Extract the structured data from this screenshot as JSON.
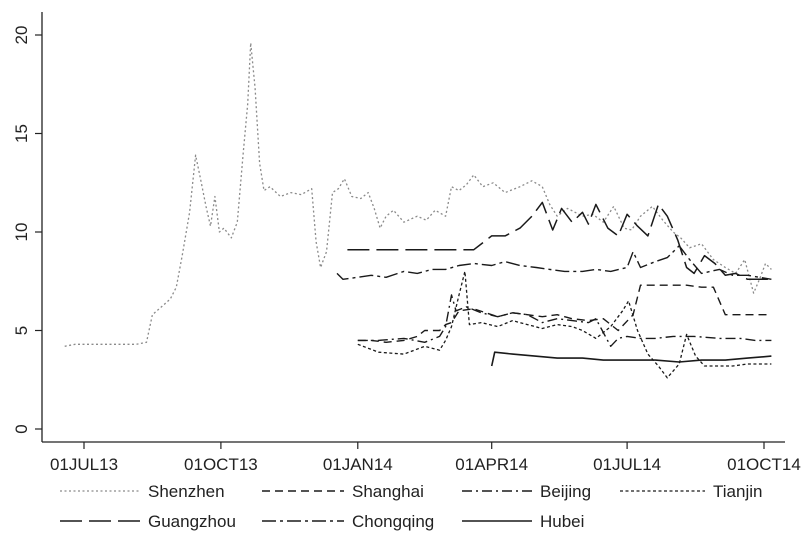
{
  "chart_data": {
    "type": "line",
    "title": "",
    "xlabel": "",
    "ylabel": "",
    "xlim": [
      "2013-06-10",
      "2014-10-12"
    ],
    "ylim": [
      0,
      20
    ],
    "grid": false,
    "legend_position": "bottom",
    "x_ticks": [
      {
        "date": "2013-07-01",
        "label": "01JUL13"
      },
      {
        "date": "2013-10-01",
        "label": "01OCT13"
      },
      {
        "date": "2014-01-01",
        "label": "01JAN14"
      },
      {
        "date": "2014-04-01",
        "label": "01APR14"
      },
      {
        "date": "2014-07-01",
        "label": "01JUL14"
      },
      {
        "date": "2014-10-01",
        "label": "01OCT14"
      }
    ],
    "y_ticks": [
      0,
      5,
      10,
      15,
      20
    ],
    "series": [
      {
        "name": "Shenzhen",
        "dash": "2,2.5",
        "color": "#8a8a8a",
        "width": 1.3,
        "points": [
          [
            "2013-06-18",
            4.2
          ],
          [
            "2013-06-25",
            4.3
          ],
          [
            "2013-07-15",
            4.3
          ],
          [
            "2013-08-05",
            4.3
          ],
          [
            "2013-08-12",
            4.4
          ],
          [
            "2013-08-16",
            5.8
          ],
          [
            "2013-08-22",
            6.2
          ],
          [
            "2013-08-28",
            6.6
          ],
          [
            "2013-09-01",
            7.2
          ],
          [
            "2013-09-05",
            8.8
          ],
          [
            "2013-09-10",
            11.0
          ],
          [
            "2013-09-14",
            13.9
          ],
          [
            "2013-09-17",
            12.8
          ],
          [
            "2013-09-21",
            11.3
          ],
          [
            "2013-09-24",
            10.3
          ],
          [
            "2013-09-27",
            11.8
          ],
          [
            "2013-09-30",
            10.0
          ],
          [
            "2013-10-03",
            10.2
          ],
          [
            "2013-10-08",
            9.7
          ],
          [
            "2013-10-12",
            10.5
          ],
          [
            "2013-10-16",
            14.0
          ],
          [
            "2013-10-19",
            16.5
          ],
          [
            "2013-10-21",
            19.6
          ],
          [
            "2013-10-24",
            17.3
          ],
          [
            "2013-10-27",
            13.5
          ],
          [
            "2013-10-30",
            12.1
          ],
          [
            "2013-11-03",
            12.3
          ],
          [
            "2013-11-10",
            11.8
          ],
          [
            "2013-11-17",
            12.0
          ],
          [
            "2013-11-24",
            11.9
          ],
          [
            "2013-12-01",
            12.2
          ],
          [
            "2013-12-04",
            9.5
          ],
          [
            "2013-12-07",
            8.2
          ],
          [
            "2013-12-11",
            9.0
          ],
          [
            "2013-12-15",
            12.0
          ],
          [
            "2013-12-19",
            12.2
          ],
          [
            "2013-12-23",
            12.7
          ],
          [
            "2013-12-28",
            11.8
          ],
          [
            "2014-01-03",
            11.7
          ],
          [
            "2014-01-08",
            12.0
          ],
          [
            "2014-01-12",
            11.2
          ],
          [
            "2014-01-16",
            10.2
          ],
          [
            "2014-01-20",
            10.8
          ],
          [
            "2014-01-25",
            11.1
          ],
          [
            "2014-02-01",
            10.5
          ],
          [
            "2014-02-10",
            10.8
          ],
          [
            "2014-02-16",
            10.6
          ],
          [
            "2014-02-22",
            11.1
          ],
          [
            "2014-03-01",
            10.8
          ],
          [
            "2014-03-05",
            12.3
          ],
          [
            "2014-03-10",
            12.1
          ],
          [
            "2014-03-15",
            12.4
          ],
          [
            "2014-03-20",
            12.9
          ],
          [
            "2014-03-26",
            12.3
          ],
          [
            "2014-04-02",
            12.5
          ],
          [
            "2014-04-10",
            12.0
          ],
          [
            "2014-04-20",
            12.3
          ],
          [
            "2014-04-28",
            12.6
          ],
          [
            "2014-05-05",
            12.3
          ],
          [
            "2014-05-10",
            11.4
          ],
          [
            "2014-05-15",
            10.8
          ],
          [
            "2014-05-22",
            11.2
          ],
          [
            "2014-06-01",
            10.8
          ],
          [
            "2014-06-08",
            10.9
          ],
          [
            "2014-06-15",
            10.5
          ],
          [
            "2014-06-22",
            11.3
          ],
          [
            "2014-06-29",
            10.2
          ],
          [
            "2014-07-04",
            10.1
          ],
          [
            "2014-07-10",
            10.8
          ],
          [
            "2014-07-18",
            11.3
          ],
          [
            "2014-07-25",
            10.6
          ],
          [
            "2014-08-01",
            10.0
          ],
          [
            "2014-08-06",
            9.7
          ],
          [
            "2014-08-12",
            9.2
          ],
          [
            "2014-08-20",
            9.4
          ],
          [
            "2014-08-28",
            8.6
          ],
          [
            "2014-09-05",
            8.2
          ],
          [
            "2014-09-12",
            7.9
          ],
          [
            "2014-09-18",
            8.6
          ],
          [
            "2014-09-24",
            6.9
          ],
          [
            "2014-09-28",
            7.6
          ],
          [
            "2014-10-02",
            8.4
          ],
          [
            "2014-10-06",
            8.1
          ]
        ]
      },
      {
        "name": "Shanghai",
        "dash": "8,5",
        "color": "#1a1a1a",
        "width": 1.4,
        "points": [
          [
            "2014-01-01",
            4.5
          ],
          [
            "2014-01-10",
            4.5
          ],
          [
            "2014-01-20",
            4.4
          ],
          [
            "2014-02-01",
            4.5
          ],
          [
            "2014-02-10",
            4.7
          ],
          [
            "2014-02-15",
            5.0
          ],
          [
            "2014-02-25",
            5.0
          ],
          [
            "2014-03-01",
            5.3
          ],
          [
            "2014-03-05",
            5.4
          ],
          [
            "2014-03-10",
            6.0
          ],
          [
            "2014-03-20",
            6.1
          ],
          [
            "2014-03-28",
            5.9
          ],
          [
            "2014-04-05",
            5.7
          ],
          [
            "2014-04-15",
            5.9
          ],
          [
            "2014-04-25",
            5.8
          ],
          [
            "2014-05-05",
            5.7
          ],
          [
            "2014-05-15",
            5.8
          ],
          [
            "2014-05-25",
            5.6
          ],
          [
            "2014-06-05",
            5.5
          ],
          [
            "2014-06-15",
            5.6
          ],
          [
            "2014-06-25",
            5.0
          ],
          [
            "2014-07-05",
            5.8
          ],
          [
            "2014-07-10",
            7.3
          ],
          [
            "2014-07-20",
            7.3
          ],
          [
            "2014-08-01",
            7.3
          ],
          [
            "2014-08-10",
            7.3
          ],
          [
            "2014-08-20",
            7.2
          ],
          [
            "2014-08-28",
            7.2
          ],
          [
            "2014-09-05",
            5.8
          ],
          [
            "2014-09-15",
            5.8
          ],
          [
            "2014-09-25",
            5.8
          ],
          [
            "2014-10-06",
            5.8
          ]
        ]
      },
      {
        "name": "Beijing",
        "dash": "10,4,2,4",
        "color": "#1a1a1a",
        "width": 1.4,
        "points": [
          [
            "2014-01-01",
            4.5
          ],
          [
            "2014-01-15",
            4.5
          ],
          [
            "2014-02-01",
            4.6
          ],
          [
            "2014-02-15",
            4.4
          ],
          [
            "2014-02-25",
            4.7
          ],
          [
            "2014-03-01",
            5.2
          ],
          [
            "2014-03-05",
            6.8
          ],
          [
            "2014-03-08",
            6.0
          ],
          [
            "2014-03-15",
            6.2
          ],
          [
            "2014-03-25",
            5.9
          ],
          [
            "2014-04-05",
            5.7
          ],
          [
            "2014-04-15",
            5.9
          ],
          [
            "2014-04-25",
            5.8
          ],
          [
            "2014-05-05",
            5.4
          ],
          [
            "2014-05-15",
            5.6
          ],
          [
            "2014-05-25",
            5.5
          ],
          [
            "2014-06-05",
            5.4
          ],
          [
            "2014-06-10",
            5.6
          ],
          [
            "2014-06-15",
            4.9
          ],
          [
            "2014-06-20",
            4.2
          ],
          [
            "2014-06-25",
            4.6
          ],
          [
            "2014-07-01",
            4.7
          ],
          [
            "2014-07-10",
            4.6
          ],
          [
            "2014-07-20",
            4.6
          ],
          [
            "2014-08-01",
            4.7
          ],
          [
            "2014-08-15",
            4.7
          ],
          [
            "2014-09-01",
            4.6
          ],
          [
            "2014-09-15",
            4.6
          ],
          [
            "2014-09-25",
            4.5
          ],
          [
            "2014-10-06",
            4.5
          ]
        ]
      },
      {
        "name": "Tianjin",
        "dash": "3,2.5",
        "color": "#1a1a1a",
        "width": 1.3,
        "points": [
          [
            "2014-01-01",
            4.3
          ],
          [
            "2014-01-15",
            3.9
          ],
          [
            "2014-02-01",
            3.8
          ],
          [
            "2014-02-15",
            4.2
          ],
          [
            "2014-02-25",
            4.0
          ],
          [
            "2014-03-01",
            4.5
          ],
          [
            "2014-03-05",
            5.2
          ],
          [
            "2014-03-10",
            6.8
          ],
          [
            "2014-03-14",
            8.0
          ],
          [
            "2014-03-17",
            5.3
          ],
          [
            "2014-03-25",
            5.4
          ],
          [
            "2014-04-05",
            5.2
          ],
          [
            "2014-04-15",
            5.5
          ],
          [
            "2014-04-25",
            5.3
          ],
          [
            "2014-05-05",
            5.1
          ],
          [
            "2014-05-15",
            5.3
          ],
          [
            "2014-05-25",
            5.2
          ],
          [
            "2014-06-01",
            5.0
          ],
          [
            "2014-06-10",
            4.6
          ],
          [
            "2014-06-20",
            5.2
          ],
          [
            "2014-06-28",
            6.0
          ],
          [
            "2014-07-02",
            6.5
          ],
          [
            "2014-07-08",
            5.0
          ],
          [
            "2014-07-15",
            3.8
          ],
          [
            "2014-07-22",
            3.2
          ],
          [
            "2014-07-28",
            2.6
          ],
          [
            "2014-08-05",
            3.3
          ],
          [
            "2014-08-10",
            4.8
          ],
          [
            "2014-08-16",
            3.7
          ],
          [
            "2014-08-22",
            3.2
          ],
          [
            "2014-09-01",
            3.2
          ],
          [
            "2014-09-10",
            3.2
          ],
          [
            "2014-09-20",
            3.3
          ],
          [
            "2014-10-06",
            3.3
          ]
        ]
      },
      {
        "name": "Guangzhou",
        "dash": "22,7",
        "color": "#1a1a1a",
        "width": 1.5,
        "points": [
          [
            "2013-12-25",
            9.1
          ],
          [
            "2014-01-15",
            9.1
          ],
          [
            "2014-02-05",
            9.1
          ],
          [
            "2014-02-25",
            9.1
          ],
          [
            "2014-03-20",
            9.1
          ],
          [
            "2014-04-01",
            9.8
          ],
          [
            "2014-04-10",
            9.8
          ],
          [
            "2014-04-20",
            10.2
          ],
          [
            "2014-04-28",
            10.8
          ],
          [
            "2014-05-05",
            11.5
          ],
          [
            "2014-05-12",
            10.1
          ],
          [
            "2014-05-18",
            11.2
          ],
          [
            "2014-05-25",
            10.5
          ],
          [
            "2014-06-01",
            11.0
          ],
          [
            "2014-06-05",
            10.4
          ],
          [
            "2014-06-10",
            11.4
          ],
          [
            "2014-06-18",
            10.2
          ],
          [
            "2014-06-25",
            9.8
          ],
          [
            "2014-07-01",
            10.9
          ],
          [
            "2014-07-08",
            10.3
          ],
          [
            "2014-07-15",
            9.8
          ],
          [
            "2014-07-22",
            11.4
          ],
          [
            "2014-07-28",
            10.8
          ],
          [
            "2014-08-04",
            9.6
          ],
          [
            "2014-08-10",
            8.2
          ],
          [
            "2014-08-15",
            7.9
          ],
          [
            "2014-08-22",
            8.8
          ],
          [
            "2014-08-29",
            8.4
          ],
          [
            "2014-09-05",
            7.8
          ],
          [
            "2014-09-12",
            7.9
          ],
          [
            "2014-09-20",
            7.6
          ],
          [
            "2014-10-06",
            7.6
          ]
        ]
      },
      {
        "name": "Chongqing",
        "dash": "14,4,3,4",
        "color": "#1a1a1a",
        "width": 1.4,
        "points": [
          [
            "2013-12-18",
            7.9
          ],
          [
            "2013-12-22",
            7.6
          ],
          [
            "2014-01-01",
            7.7
          ],
          [
            "2014-01-10",
            7.8
          ],
          [
            "2014-01-20",
            7.7
          ],
          [
            "2014-02-01",
            8.0
          ],
          [
            "2014-02-10",
            7.9
          ],
          [
            "2014-02-20",
            8.1
          ],
          [
            "2014-03-01",
            8.1
          ],
          [
            "2014-03-10",
            8.3
          ],
          [
            "2014-03-20",
            8.4
          ],
          [
            "2014-04-01",
            8.3
          ],
          [
            "2014-04-10",
            8.5
          ],
          [
            "2014-04-20",
            8.3
          ],
          [
            "2014-05-01",
            8.2
          ],
          [
            "2014-05-10",
            8.1
          ],
          [
            "2014-05-20",
            8.0
          ],
          [
            "2014-06-01",
            8.0
          ],
          [
            "2014-06-10",
            8.1
          ],
          [
            "2014-06-20",
            8.0
          ],
          [
            "2014-07-01",
            8.2
          ],
          [
            "2014-07-05",
            9.0
          ],
          [
            "2014-07-10",
            8.2
          ],
          [
            "2014-07-20",
            8.5
          ],
          [
            "2014-07-28",
            8.7
          ],
          [
            "2014-08-05",
            9.3
          ],
          [
            "2014-08-12",
            8.6
          ],
          [
            "2014-08-20",
            7.9
          ],
          [
            "2014-09-01",
            8.1
          ],
          [
            "2014-09-10",
            7.8
          ],
          [
            "2014-09-20",
            7.8
          ],
          [
            "2014-10-06",
            7.6
          ]
        ]
      },
      {
        "name": "Hubei",
        "dash": "",
        "color": "#1a1a1a",
        "width": 1.6,
        "points": [
          [
            "2014-04-01",
            3.2
          ],
          [
            "2014-04-03",
            3.9
          ],
          [
            "2014-04-15",
            3.8
          ],
          [
            "2014-04-30",
            3.7
          ],
          [
            "2014-05-15",
            3.6
          ],
          [
            "2014-06-01",
            3.6
          ],
          [
            "2014-06-15",
            3.5
          ],
          [
            "2014-07-01",
            3.5
          ],
          [
            "2014-07-20",
            3.5
          ],
          [
            "2014-08-05",
            3.4
          ],
          [
            "2014-08-20",
            3.5
          ],
          [
            "2014-09-05",
            3.5
          ],
          [
            "2014-09-20",
            3.6
          ],
          [
            "2014-10-06",
            3.7
          ]
        ]
      }
    ],
    "legend": {
      "rows": [
        [
          "Shenzhen",
          "Shanghai",
          "Beijing",
          "Tianjin"
        ],
        [
          "Guangzhou",
          "Chongqing",
          "Hubei"
        ]
      ]
    }
  }
}
